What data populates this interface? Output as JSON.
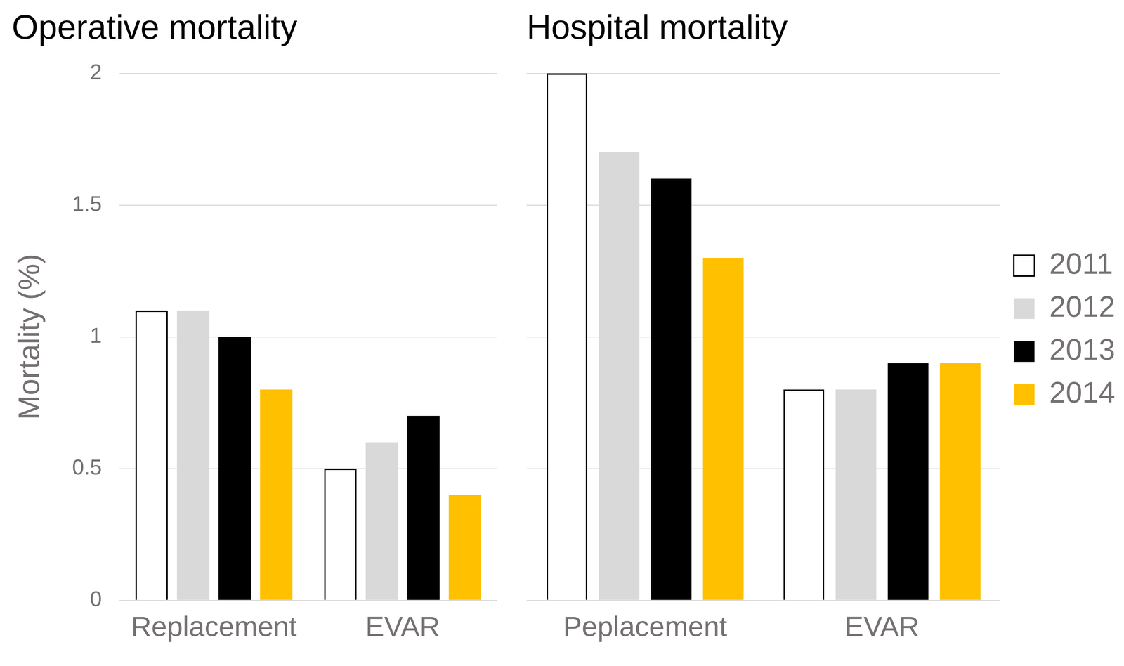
{
  "chart_data": [
    {
      "type": "bar",
      "title": "Operative mortality",
      "y_label": "Mortality (%)",
      "categories": [
        "Replacement",
        "EVAR"
      ],
      "series": [
        {
          "name": "2011",
          "color": "#ffffff",
          "values": [
            1.1,
            0.5
          ]
        },
        {
          "name": "2012",
          "color": "#d9d9d9",
          "values": [
            1.1,
            0.6
          ]
        },
        {
          "name": "2013",
          "color": "#000000",
          "values": [
            1.0,
            0.7
          ]
        },
        {
          "name": "2014",
          "color": "#ffc000",
          "values": [
            0.8,
            0.4
          ]
        }
      ],
      "ylim": [
        0,
        2
      ],
      "yticks": [
        0,
        0.5,
        1,
        1.5,
        2
      ],
      "grid": true
    },
    {
      "type": "bar",
      "title": "Hospital mortality",
      "categories": [
        "Peplacement",
        "EVAR"
      ],
      "series": [
        {
          "name": "2011",
          "color": "#ffffff",
          "values": [
            2.0,
            0.8
          ]
        },
        {
          "name": "2012",
          "color": "#d9d9d9",
          "values": [
            1.7,
            0.8
          ]
        },
        {
          "name": "2013",
          "color": "#000000",
          "values": [
            1.6,
            0.9
          ]
        },
        {
          "name": "2014",
          "color": "#ffc000",
          "values": [
            1.3,
            0.9
          ]
        }
      ],
      "ylim": [
        0,
        2
      ],
      "yticks": [
        0,
        0.5,
        1,
        1.5,
        2
      ],
      "grid": true,
      "tick_labels": "x",
      "legend": "right"
    }
  ]
}
